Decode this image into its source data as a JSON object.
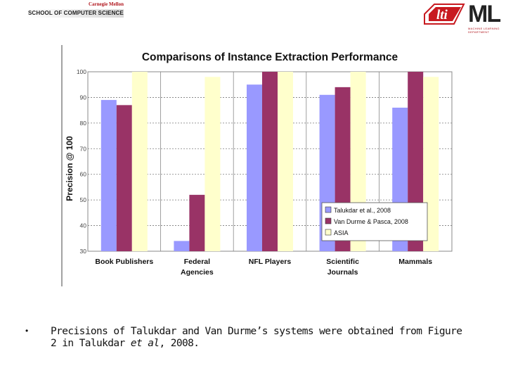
{
  "header": {
    "cmu_university": "Carnegie Mellon",
    "cmu_school": "SCHOOL OF COMPUTER SCIENCE",
    "lti_logo_text": "lti",
    "ml_logo_text": "ML",
    "ml_logo_sub1": "MACHINE LEARNING",
    "ml_logo_sub2": "DEPARTMENT"
  },
  "colors": {
    "series_talukdar": "#9999ff",
    "series_vandurme": "#993366",
    "series_asia": "#ffffcc",
    "cmu_red": "#b0141b"
  },
  "chart_data": {
    "type": "bar",
    "title": "Comparisons of Instance Extraction Performance",
    "xlabel": "",
    "ylabel": "Precision @ 100",
    "ylim": [
      30,
      100
    ],
    "yticks": [
      "30",
      "40",
      "50",
      "60",
      "70",
      "80",
      "90",
      "100"
    ],
    "grid": "horizontal dashed",
    "legend_position": "bottom-right",
    "categories": [
      [
        "Book Publishers"
      ],
      [
        "Federal",
        "Agencies"
      ],
      [
        "NFL Players"
      ],
      [
        "Scientific",
        "Journals"
      ],
      [
        "Mammals"
      ]
    ],
    "series": [
      {
        "name": "Talukdar et al., 2008",
        "values": [
          89,
          34,
          95,
          91,
          86
        ]
      },
      {
        "name": "Van Durme & Pasca, 2008",
        "values": [
          87,
          52,
          100,
          94,
          100
        ]
      },
      {
        "name": "ASIA",
        "values": [
          100,
          98,
          100,
          100,
          98
        ]
      }
    ]
  },
  "bullet": {
    "marker": "•",
    "text_before": "Precisions of Talukdar and Van Durme’s systems were obtained from Figure 2 in Talukdar ",
    "text_italic": "et al",
    "text_after": ", 2008."
  }
}
